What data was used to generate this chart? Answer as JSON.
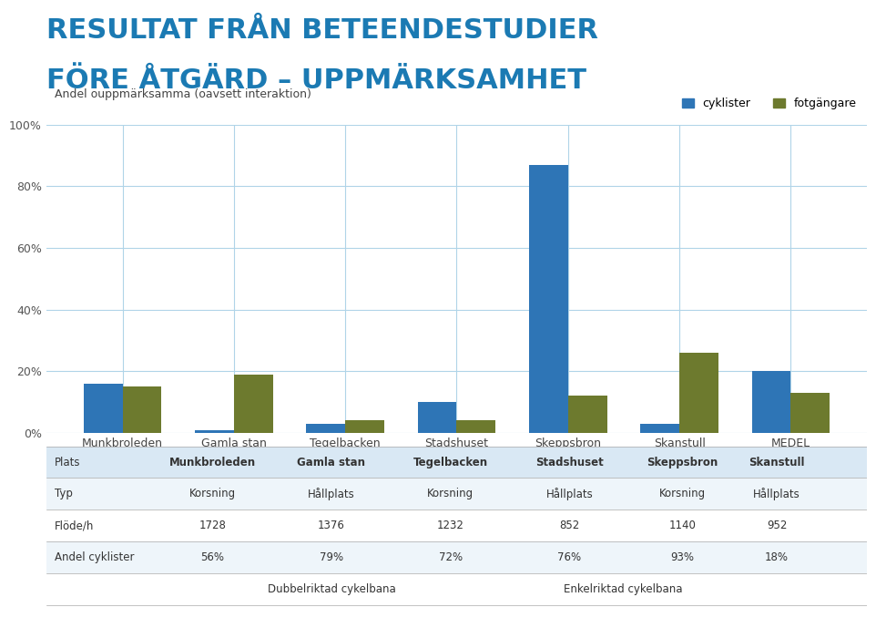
{
  "title_line1": "RESULTAT FRÅN BETEENDESTUDIER",
  "title_line2": "FÖRE ÅTGÄRD – UPPMÄRKSAMHET",
  "title_color": "#1B7AB3",
  "chart_subtitle": "Andel ouppmärksamma (oavsett interaktion)",
  "legend_labels": [
    "cyklister",
    "fotgängare"
  ],
  "categories": [
    "Munkbroleden",
    "Gamla stan",
    "Tegelbacken",
    "Stadshuset",
    "Skeppsbron",
    "Skanstull",
    "MEDEL"
  ],
  "cyklister": [
    16,
    1,
    3,
    10,
    87,
    3,
    20
  ],
  "fotgangare": [
    15,
    19,
    4,
    4,
    12,
    26,
    13
  ],
  "bar_color_cyklister": "#2E75B6",
  "bar_color_fotgangare": "#6D7A2E",
  "ylim": [
    0,
    100
  ],
  "yticks": [
    0,
    20,
    40,
    60,
    80,
    100
  ],
  "ytick_labels": [
    "0%",
    "20%",
    "40%",
    "60%",
    "80%",
    "100%"
  ],
  "grid_color": "#B0D4E8",
  "background_color": "#FFFFFF",
  "table_data": [
    [
      "Plats",
      "Munkbroleden",
      "Gamla stan",
      "Tegelbacken",
      "Stadshuset",
      "Skeppsbron",
      "Skanstull"
    ],
    [
      "Typ",
      "Korsning",
      "Hållplats",
      "Korsning",
      "Hållplats",
      "Korsning",
      "Hållplats"
    ],
    [
      "Flöde/h",
      "1728",
      "1376",
      "1232",
      "852",
      "1140",
      "952"
    ],
    [
      "Andel cyklister",
      "56%",
      "79%",
      "72%",
      "76%",
      "93%",
      "18%"
    ],
    [
      "",
      "",
      "Dubbelriktad cykelbana",
      "",
      "",
      "Enkelriktad cykelbana",
      ""
    ]
  ],
  "table_header_bg": "#D9E8F4",
  "table_alt_bg": "#EEF5FA",
  "table_white_bg": "#FFFFFF",
  "divider_color": "#AAAAAA"
}
